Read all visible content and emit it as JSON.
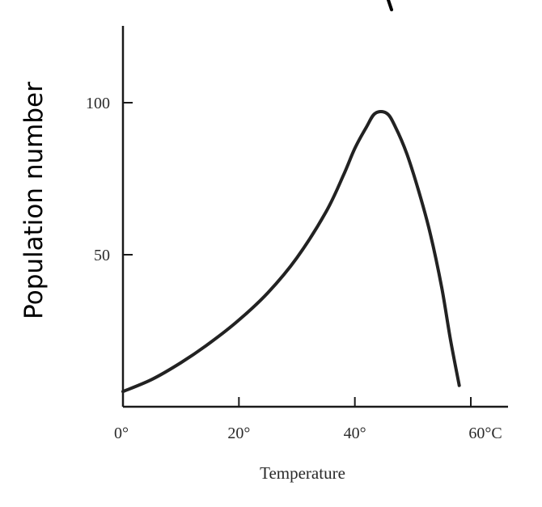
{
  "chart_data": {
    "type": "line",
    "xlabel": "Temperature",
    "ylabel": "Population number",
    "x_ticks": [
      {
        "value": 0,
        "label": "0°"
      },
      {
        "value": 20,
        "label": "20°"
      },
      {
        "value": 40,
        "label": "40°"
      },
      {
        "value": 60,
        "label": "60°C"
      }
    ],
    "y_ticks": [
      {
        "value": 50,
        "label": "50"
      },
      {
        "value": 100,
        "label": "100"
      }
    ],
    "xlim": [
      0,
      62
    ],
    "ylim": [
      0,
      125
    ],
    "grid": false,
    "series": [
      {
        "color": "#222222",
        "points": [
          [
            0,
            5
          ],
          [
            5,
            9
          ],
          [
            10,
            14.5
          ],
          [
            15,
            21
          ],
          [
            20,
            28.5
          ],
          [
            25,
            37.5
          ],
          [
            30,
            49
          ],
          [
            35,
            64
          ],
          [
            38,
            76
          ],
          [
            40,
            85
          ],
          [
            42,
            92
          ],
          [
            43.5,
            96.5
          ],
          [
            45.5,
            96.5
          ],
          [
            47,
            92
          ],
          [
            49,
            83
          ],
          [
            51,
            71
          ],
          [
            53,
            57
          ],
          [
            55,
            39
          ],
          [
            56.5,
            22
          ],
          [
            58,
            7
          ]
        ]
      }
    ]
  }
}
